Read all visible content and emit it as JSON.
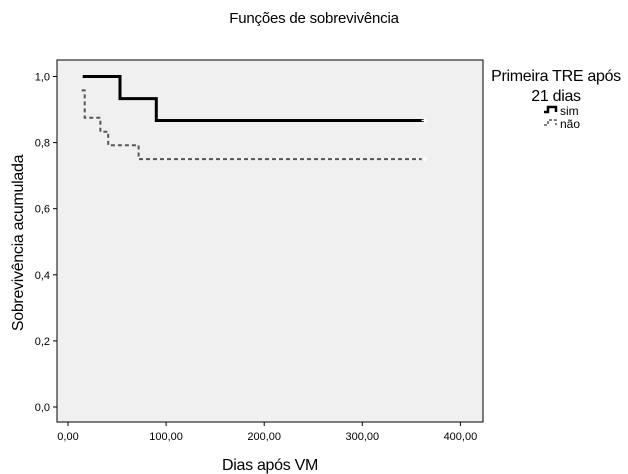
{
  "chart_data": {
    "type": "line",
    "title": "Funções de sobrevivência",
    "xlabel": "Dias após VM",
    "ylabel": "Sobrevivência acumulada",
    "xlim": [
      0,
      400
    ],
    "ylim": [
      0.0,
      1.0
    ],
    "x_ticks": [
      0,
      100,
      200,
      300,
      400
    ],
    "x_tick_labels": [
      "0,00",
      "100,00",
      "200,00",
      "300,00",
      "400,00"
    ],
    "y_ticks": [
      0.0,
      0.2,
      0.4,
      0.6,
      0.8,
      1.0
    ],
    "y_tick_labels": [
      "0,0",
      "0,2",
      "0,4",
      "0,6",
      "0,8",
      "1,0"
    ],
    "grid": false,
    "legend_title": "Primeira TRE após 21 dias",
    "legend_title_lines": [
      "Primeira TRE após",
      "21 dias"
    ],
    "legend_position": "right",
    "series": [
      {
        "name": "sim",
        "style": "solid",
        "step": true,
        "color": "#000000",
        "points": [
          [
            15,
            1.0
          ],
          [
            53,
            1.0
          ],
          [
            53,
            0.933
          ],
          [
            90,
            0.933
          ],
          [
            90,
            0.867
          ],
          [
            363,
            0.867
          ]
        ],
        "censored": [
          [
            363,
            0.867
          ]
        ]
      },
      {
        "name": "não",
        "style": "dashed",
        "step": true,
        "color": "#555555",
        "points": [
          [
            14,
            0.958
          ],
          [
            17,
            0.958
          ],
          [
            17,
            0.875
          ],
          [
            33,
            0.875
          ],
          [
            33,
            0.833
          ],
          [
            41,
            0.833
          ],
          [
            41,
            0.792
          ],
          [
            72,
            0.792
          ],
          [
            72,
            0.75
          ],
          [
            363,
            0.75
          ]
        ],
        "censored": [
          [
            363,
            0.75
          ]
        ]
      }
    ]
  },
  "colors": {
    "plot_background": "#f0f0f0",
    "axis": "#000000"
  }
}
